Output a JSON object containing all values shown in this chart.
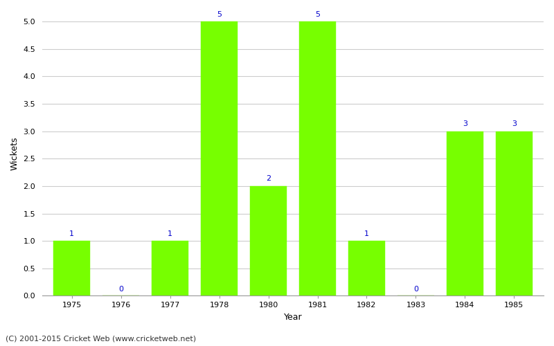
{
  "years": [
    "1975",
    "1976",
    "1977",
    "1978",
    "1980",
    "1981",
    "1982",
    "1983",
    "1984",
    "1985"
  ],
  "wickets": [
    1,
    0,
    1,
    5,
    2,
    5,
    1,
    0,
    3,
    3
  ],
  "bar_color": "#77ff00",
  "bar_edge_color": "#77ff00",
  "label_color": "#0000cc",
  "xlabel": "Year",
  "ylabel": "Wickets",
  "ylim": [
    0,
    5.2
  ],
  "yticks": [
    0.0,
    0.5,
    1.0,
    1.5,
    2.0,
    2.5,
    3.0,
    3.5,
    4.0,
    4.5,
    5.0
  ],
  "background_color": "#ffffff",
  "grid_color": "#cccccc",
  "footnote": "(C) 2001-2015 Cricket Web (www.cricketweb.net)",
  "label_fontsize": 8,
  "axis_label_fontsize": 9,
  "tick_fontsize": 8,
  "footnote_fontsize": 8,
  "bar_width": 0.75
}
